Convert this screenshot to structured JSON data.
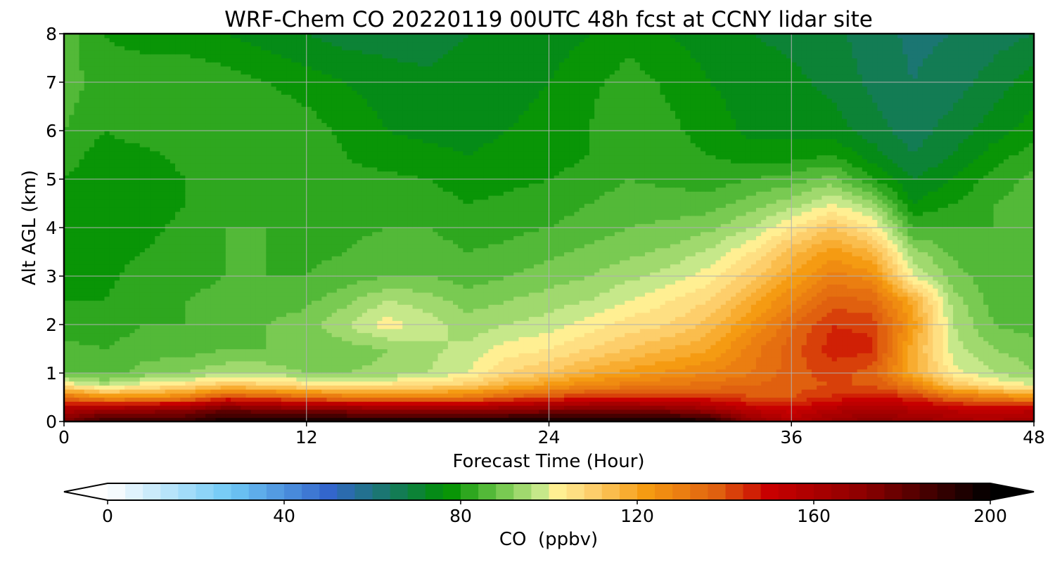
{
  "chart_data": {
    "type": "heatmap",
    "title": "WRF-Chem CO  20220119 00UTC 48h fcst at CCNY lidar site",
    "xlabel": "Forecast Time (Hour)",
    "ylabel": "Alt AGL (km)",
    "xlim": [
      0,
      48
    ],
    "ylim": [
      0,
      8
    ],
    "xticks": [
      0,
      12,
      24,
      36,
      48
    ],
    "yticks": [
      0,
      1,
      2,
      3,
      4,
      5,
      6,
      7,
      8
    ],
    "grid": true,
    "colorbar": {
      "label": "CO  (ppbv)",
      "range": [
        0,
        200
      ],
      "ticks": [
        0,
        40,
        80,
        120,
        160,
        200
      ],
      "extend": "both",
      "orientation": "horizontal",
      "colors": [
        {
          "v": 0,
          "c": "#ffffff"
        },
        {
          "v": 28,
          "c": "#6ec8f5"
        },
        {
          "v": 50,
          "c": "#3366cc"
        },
        {
          "v": 65,
          "c": "#157a5c"
        },
        {
          "v": 77,
          "c": "#009000"
        },
        {
          "v": 88,
          "c": "#66c244"
        },
        {
          "v": 98,
          "c": "#c6e88a"
        },
        {
          "v": 100,
          "c": "#fff79a"
        },
        {
          "v": 108,
          "c": "#fed77a"
        },
        {
          "v": 122,
          "c": "#f59b12"
        },
        {
          "v": 138,
          "c": "#e0600f"
        },
        {
          "v": 150,
          "c": "#c80000"
        },
        {
          "v": 172,
          "c": "#8a0000"
        },
        {
          "v": 200,
          "c": "#000000"
        }
      ]
    },
    "field": {
      "x_hours": [
        0,
        2,
        4,
        6,
        8,
        10,
        12,
        14,
        16,
        18,
        20,
        22,
        24,
        26,
        28,
        30,
        32,
        34,
        36,
        38,
        40,
        42,
        44,
        46,
        48
      ],
      "y_km": [
        0,
        0.25,
        0.5,
        0.75,
        1,
        1.5,
        2,
        2.5,
        3,
        3.5,
        4,
        4.5,
        5,
        5.5,
        6,
        7,
        8
      ],
      "values": [
        [
          175,
          190,
          190,
          190,
          196,
          196,
          196,
          196,
          198,
          198,
          198,
          198,
          198,
          198,
          198,
          198,
          196,
          170,
          158,
          165,
          172,
          168,
          163,
          160,
          165
        ],
        [
          160,
          166,
          168,
          170,
          180,
          175,
          172,
          172,
          168,
          168,
          168,
          170,
          172,
          175,
          176,
          172,
          165,
          155,
          150,
          158,
          160,
          158,
          155,
          152,
          155
        ],
        [
          135,
          125,
          125,
          130,
          142,
          140,
          135,
          132,
          130,
          130,
          132,
          138,
          142,
          145,
          145,
          145,
          145,
          140,
          140,
          145,
          148,
          145,
          135,
          130,
          125
        ],
        [
          105,
          97,
          103,
          106,
          112,
          110,
          106,
          106,
          106,
          108,
          110,
          118,
          122,
          128,
          130,
          132,
          134,
          136,
          138,
          140,
          140,
          130,
          112,
          105,
          100
        ],
        [
          88,
          86,
          90,
          92,
          95,
          95,
          92,
          92,
          93,
          96,
          100,
          108,
          112,
          118,
          122,
          125,
          128,
          132,
          138,
          142,
          138,
          118,
          102,
          96,
          92
        ],
        [
          85,
          84,
          86,
          86,
          88,
          88,
          88,
          90,
          92,
          95,
          97,
          102,
          104,
          108,
          112,
          116,
          120,
          130,
          138,
          146,
          145,
          118,
          98,
          92,
          90
        ],
        [
          82,
          82,
          84,
          84,
          86,
          88,
          90,
          96,
          102,
          98,
          94,
          96,
          98,
          102,
          106,
          108,
          114,
          124,
          135,
          144,
          143,
          122,
          96,
          88,
          86
        ],
        [
          80,
          80,
          82,
          84,
          85,
          86,
          87,
          91,
          96,
          94,
          90,
          92,
          94,
          96,
          100,
          104,
          108,
          118,
          128,
          138,
          136,
          118,
          94,
          86,
          84
        ],
        [
          78,
          79,
          82,
          83,
          84,
          84,
          84,
          86,
          88,
          88,
          86,
          88,
          90,
          92,
          95,
          98,
          102,
          110,
          120,
          130,
          126,
          100,
          90,
          85,
          84
        ],
        [
          77,
          78,
          80,
          82,
          84,
          84,
          83,
          84,
          86,
          86,
          84,
          85,
          87,
          89,
          91,
          93,
          97,
          104,
          114,
          122,
          116,
          94,
          87,
          84,
          84
        ],
        [
          78,
          77,
          79,
          81,
          84,
          84,
          82,
          83,
          84,
          84,
          82,
          83,
          84,
          86,
          88,
          89,
          91,
          96,
          104,
          112,
          104,
          84,
          84,
          84,
          86
        ],
        [
          79,
          77,
          78,
          80,
          83,
          84,
          82,
          82,
          83,
          82,
          80,
          81,
          82,
          84,
          86,
          86,
          86,
          90,
          94,
          100,
          94,
          76,
          80,
          84,
          86
        ],
        [
          80,
          77,
          78,
          80,
          83,
          84,
          82,
          81,
          81,
          80,
          78,
          79,
          80,
          82,
          84,
          83,
          82,
          84,
          86,
          90,
          80,
          72,
          76,
          82,
          85
        ],
        [
          82,
          78,
          79,
          81,
          83,
          84,
          82,
          80,
          78,
          77,
          76,
          77,
          78,
          80,
          83,
          82,
          80,
          78,
          78,
          80,
          74,
          68,
          72,
          78,
          82
        ],
        [
          84,
          80,
          82,
          84,
          84,
          84,
          82,
          79,
          76,
          75,
          75,
          76,
          77,
          80,
          84,
          81,
          78,
          75,
          75,
          74,
          70,
          66,
          70,
          74,
          78
        ],
        [
          86,
          82,
          83,
          84,
          82,
          80,
          78,
          76,
          74,
          73,
          74,
          75,
          76,
          79,
          82,
          79,
          76,
          74,
          73,
          71,
          67,
          64,
          66,
          70,
          74
        ],
        [
          86,
          80,
          78,
          77,
          76,
          74,
          72,
          70,
          70,
          70,
          72,
          73,
          74,
          76,
          78,
          76,
          74,
          72,
          71,
          69,
          66,
          63,
          64,
          66,
          68
        ]
      ]
    }
  }
}
